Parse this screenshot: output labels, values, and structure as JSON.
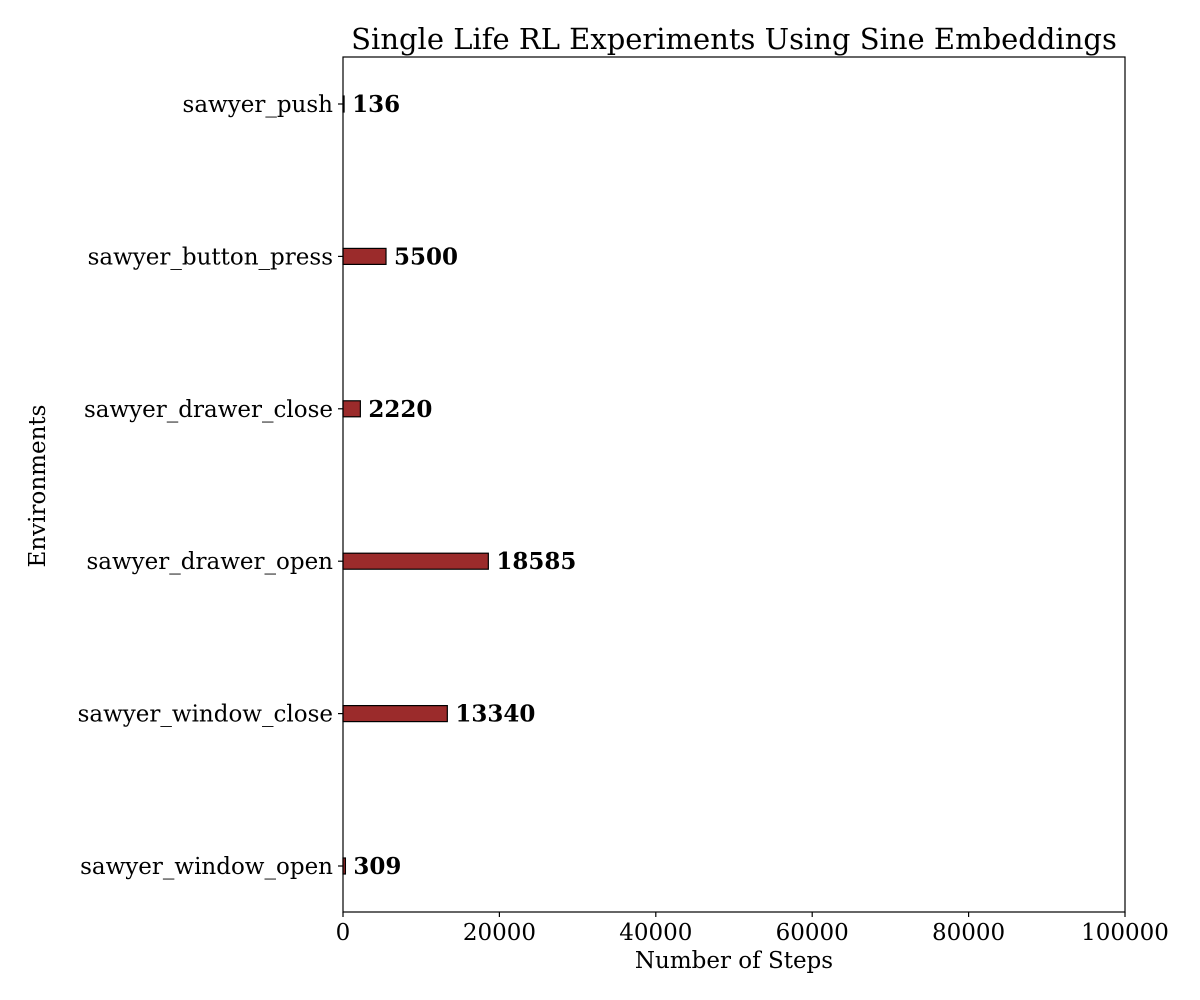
{
  "chart_data": {
    "type": "bar",
    "orientation": "horizontal",
    "title": "Single Life RL Experiments Using Sine Embeddings",
    "xlabel": "Number of Steps",
    "ylabel": "Environments",
    "xlim": [
      0,
      100000
    ],
    "x_ticks": [
      0,
      20000,
      40000,
      60000,
      80000,
      100000
    ],
    "x_tick_labels": [
      "0",
      "20000",
      "40000",
      "60000",
      "80000",
      "100000"
    ],
    "categories": [
      "sawyer_push",
      "sawyer_button_press",
      "sawyer_drawer_close",
      "sawyer_drawer_open",
      "sawyer_window_close",
      "sawyer_window_open"
    ],
    "values": [
      136,
      5500,
      2220,
      18585,
      13340,
      309
    ],
    "data_labels": [
      "136",
      "5500",
      "2220",
      "18585",
      "13340",
      "309"
    ],
    "bar_color": "#9B2B2B",
    "bar_edge_color": "#000000",
    "grid": false,
    "legend": false
  }
}
